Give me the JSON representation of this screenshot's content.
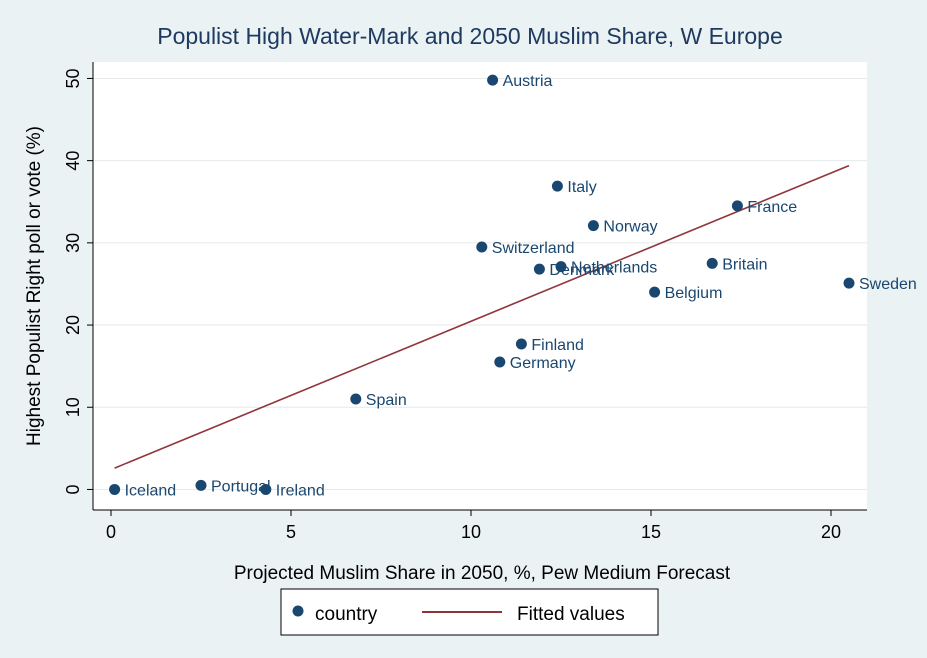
{
  "chart_data": {
    "type": "scatter",
    "title": "Populist High Water-Mark and 2050 Muslim Share, W Europe",
    "xlabel": "Projected Muslim Share in 2050, %, Pew Medium Forecast",
    "ylabel": "Highest Populist Right poll or vote (%)",
    "xlim": [
      -0.5,
      21
    ],
    "ylim": [
      -2.5,
      52
    ],
    "xticks": [
      0,
      5,
      10,
      15,
      20
    ],
    "yticks": [
      0,
      10,
      20,
      30,
      40,
      50
    ],
    "grid": true,
    "legend_position": "bottom",
    "series": [
      {
        "name": "country",
        "marker_color": "#1a476f",
        "points": [
          {
            "label": "Austria",
            "x": 10.6,
            "y": 49.8
          },
          {
            "label": "Italy",
            "x": 12.4,
            "y": 36.9
          },
          {
            "label": "France",
            "x": 17.4,
            "y": 34.5
          },
          {
            "label": "Norway",
            "x": 13.4,
            "y": 32.1
          },
          {
            "label": "Switzerland",
            "x": 10.3,
            "y": 29.5
          },
          {
            "label": "Britain",
            "x": 16.7,
            "y": 27.5
          },
          {
            "label": "Netherlands",
            "x": 12.5,
            "y": 27.1
          },
          {
            "label": "Denmark",
            "x": 11.9,
            "y": 26.8
          },
          {
            "label": "Sweden",
            "x": 20.5,
            "y": 25.1
          },
          {
            "label": "Belgium",
            "x": 15.1,
            "y": 24.0
          },
          {
            "label": "Finland",
            "x": 11.4,
            "y": 17.7
          },
          {
            "label": "Germany",
            "x": 10.8,
            "y": 15.5
          },
          {
            "label": "Spain",
            "x": 6.8,
            "y": 11.0
          },
          {
            "label": "Portugal",
            "x": 2.5,
            "y": 0.5
          },
          {
            "label": "Iceland",
            "x": 0.1,
            "y": 0.0
          },
          {
            "label": "Ireland",
            "x": 4.3,
            "y": 0.0
          }
        ]
      },
      {
        "name": "Fitted values",
        "line_color": "#90353b",
        "line": {
          "x": [
            0.1,
            20.5
          ],
          "y": [
            2.6,
            39.4
          ]
        }
      }
    ]
  }
}
